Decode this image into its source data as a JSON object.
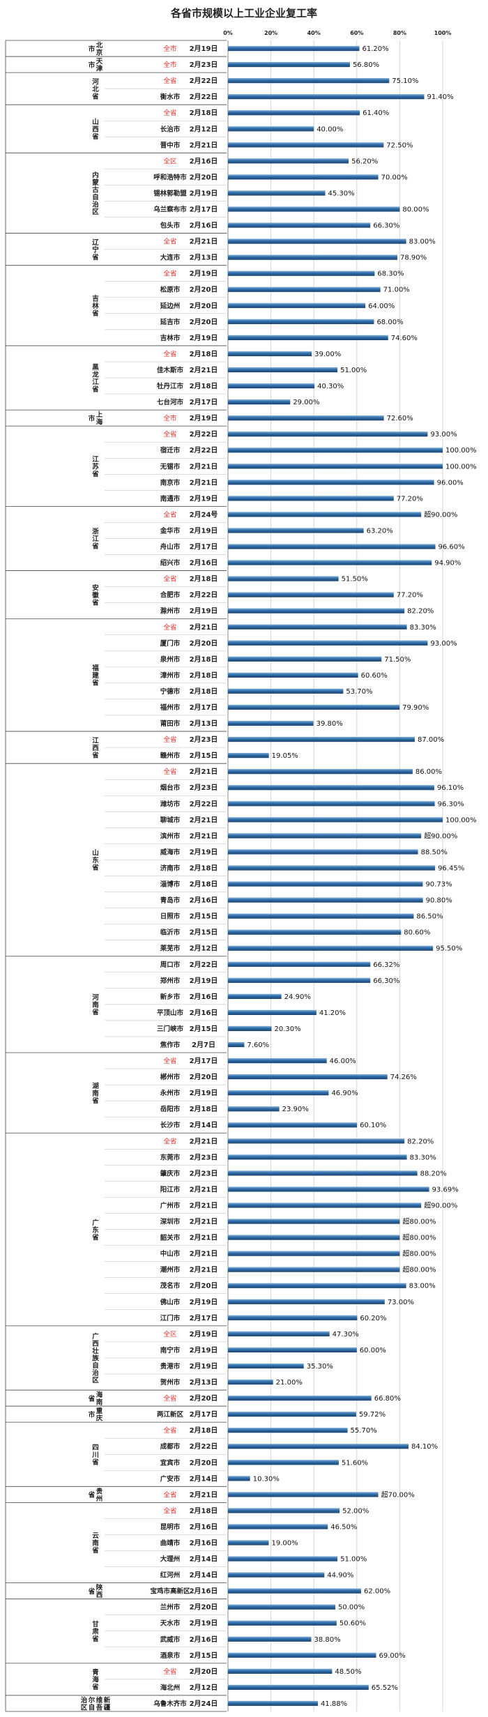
{
  "chart_data": {
    "type": "bar",
    "title": "各省市规模以上工业企业复工率",
    "xlabel": "",
    "ylabel": "",
    "xlim": [
      0,
      100
    ],
    "x_ticks": [
      "0%",
      "20%",
      "40%",
      "60%",
      "80%",
      "100%"
    ],
    "grid": true,
    "bar_color": "#2e6aa6",
    "accent_color": "#e8352c",
    "groups": [
      {
        "province": "北京市",
        "rows": [
          {
            "city": "全市",
            "date": "2月19日",
            "value": 61.2,
            "label": "61.20%"
          }
        ]
      },
      {
        "province": "天津市",
        "rows": [
          {
            "city": "全市",
            "date": "2月23日",
            "value": 56.8,
            "label": "56.80%"
          }
        ]
      },
      {
        "province": "河北省",
        "rows": [
          {
            "city": "全省",
            "date": "2月22日",
            "value": 75.1,
            "label": "75.10%"
          },
          {
            "city": "衡水市",
            "date": "2月22日",
            "value": 91.4,
            "label": "91.40%"
          }
        ]
      },
      {
        "province": "山西省",
        "rows": [
          {
            "city": "全省",
            "date": "2月18日",
            "value": 61.4,
            "label": "61.40%"
          },
          {
            "city": "长治市",
            "date": "2月12日",
            "value": 40.0,
            "label": "40.00%"
          },
          {
            "city": "晋中市",
            "date": "2月21日",
            "value": 72.5,
            "label": "72.50%"
          }
        ]
      },
      {
        "province": "内蒙古自治区",
        "rows": [
          {
            "city": "全区",
            "date": "2月16日",
            "value": 56.2,
            "label": "56.20%"
          },
          {
            "city": "呼和浩特市",
            "date": "2月20日",
            "value": 70.0,
            "label": "70.00%"
          },
          {
            "city": "锡林郭勒盟",
            "date": "2月19日",
            "value": 45.3,
            "label": "45.30%"
          },
          {
            "city": "乌兰察布市",
            "date": "2月17日",
            "value": 80.0,
            "label": "80.00%"
          },
          {
            "city": "包头市",
            "date": "2月16日",
            "value": 66.3,
            "label": "66.30%"
          }
        ]
      },
      {
        "province": "辽宁省",
        "rows": [
          {
            "city": "全省",
            "date": "2月21日",
            "value": 83.0,
            "label": "83.00%"
          },
          {
            "city": "大连市",
            "date": "2月13日",
            "value": 78.9,
            "label": "78.90%"
          }
        ]
      },
      {
        "province": "吉林省",
        "rows": [
          {
            "city": "全省",
            "date": "2月19日",
            "value": 68.3,
            "label": "68.30%"
          },
          {
            "city": "松原市",
            "date": "2月20日",
            "value": 71.0,
            "label": "71.00%"
          },
          {
            "city": "延边州",
            "date": "2月20日",
            "value": 64.0,
            "label": "64.00%"
          },
          {
            "city": "延吉市",
            "date": "2月20日",
            "value": 68.0,
            "label": "68.00%"
          },
          {
            "city": "吉林市",
            "date": "2月19日",
            "value": 74.6,
            "label": "74.60%"
          }
        ]
      },
      {
        "province": "黑龙江省",
        "rows": [
          {
            "city": "全省",
            "date": "2月18日",
            "value": 39.0,
            "label": "39.00%"
          },
          {
            "city": "佳木斯市",
            "date": "2月21日",
            "value": 51.0,
            "label": "51.00%"
          },
          {
            "city": "牡丹江市",
            "date": "2月18日",
            "value": 40.3,
            "label": "40.30%"
          },
          {
            "city": "七台河市",
            "date": "2月17日",
            "value": 29.0,
            "label": "29.00%"
          }
        ]
      },
      {
        "province": "上海市",
        "rows": [
          {
            "city": "全市",
            "date": "2月19日",
            "value": 72.6,
            "label": "72.60%"
          }
        ]
      },
      {
        "province": "江苏省",
        "rows": [
          {
            "city": "全省",
            "date": "2月22日",
            "value": 93.0,
            "label": "93.00%"
          },
          {
            "city": "宿迁市",
            "date": "2月22日",
            "value": 100.0,
            "label": "100.00%"
          },
          {
            "city": "无锡市",
            "date": "2月21日",
            "value": 100.0,
            "label": "100.00%"
          },
          {
            "city": "南京市",
            "date": "2月21日",
            "value": 96.0,
            "label": "96.00%"
          },
          {
            "city": "南通市",
            "date": "2月19日",
            "value": 77.2,
            "label": "77.20%"
          }
        ]
      },
      {
        "province": "浙江省",
        "rows": [
          {
            "city": "全省",
            "date": "2月24号",
            "value": 90.0,
            "label": "超90.00%"
          },
          {
            "city": "金华市",
            "date": "2月19日",
            "value": 63.2,
            "label": "63.20%"
          },
          {
            "city": "舟山市",
            "date": "2月17日",
            "value": 96.6,
            "label": "96.60%"
          },
          {
            "city": "绍兴市",
            "date": "2月16日",
            "value": 94.9,
            "label": "94.90%"
          }
        ]
      },
      {
        "province": "安徽省",
        "rows": [
          {
            "city": "全省",
            "date": "2月18日",
            "value": 51.5,
            "label": "51.50%"
          },
          {
            "city": "合肥市",
            "date": "2月22日",
            "value": 77.2,
            "label": "77.20%"
          },
          {
            "city": "滁州市",
            "date": "2月19日",
            "value": 82.2,
            "label": "82.20%"
          }
        ]
      },
      {
        "province": "福建省",
        "rows": [
          {
            "city": "全省",
            "date": "2月21日",
            "value": 83.3,
            "label": "83.30%"
          },
          {
            "city": "厦门市",
            "date": "2月20日",
            "value": 93.0,
            "label": "93.00%"
          },
          {
            "city": "泉州市",
            "date": "2月18日",
            "value": 71.5,
            "label": "71.50%"
          },
          {
            "city": "漳州市",
            "date": "2月18日",
            "value": 60.6,
            "label": "60.60%"
          },
          {
            "city": "宁德市",
            "date": "2月18日",
            "value": 53.7,
            "label": "53.70%"
          },
          {
            "city": "福州市",
            "date": "2月17日",
            "value": 79.9,
            "label": "79.90%"
          },
          {
            "city": "莆田市",
            "date": "2月13日",
            "value": 39.8,
            "label": "39.80%"
          }
        ]
      },
      {
        "province": "江西省",
        "rows": [
          {
            "city": "全省",
            "date": "2月23日",
            "value": 87.0,
            "label": "87.00%"
          },
          {
            "city": "赣州市",
            "date": "2月15日",
            "value": 19.05,
            "label": "19.05%"
          }
        ]
      },
      {
        "province": "山东省",
        "rows": [
          {
            "city": "全省",
            "date": "2月21日",
            "value": 86.0,
            "label": "86.00%"
          },
          {
            "city": "烟台市",
            "date": "2月23日",
            "value": 96.1,
            "label": "96.10%"
          },
          {
            "city": "潍坊市",
            "date": "2月22日",
            "value": 96.3,
            "label": "96.30%"
          },
          {
            "city": "聊城市",
            "date": "2月21日",
            "value": 100.0,
            "label": "100.00%"
          },
          {
            "city": "滨州市",
            "date": "2月21日",
            "value": 90.0,
            "label": "超90.00%"
          },
          {
            "city": "威海市",
            "date": "2月19日",
            "value": 88.5,
            "label": "88.50%"
          },
          {
            "city": "济南市",
            "date": "2月18日",
            "value": 96.45,
            "label": "96.45%"
          },
          {
            "city": "淄博市",
            "date": "2月18日",
            "value": 90.73,
            "label": "90.73%"
          },
          {
            "city": "青岛市",
            "date": "2月16日",
            "value": 90.8,
            "label": "90.80%"
          },
          {
            "city": "日照市",
            "date": "2月15日",
            "value": 86.5,
            "label": "86.50%"
          },
          {
            "city": "临沂市",
            "date": "2月15日",
            "value": 80.6,
            "label": "80.60%"
          },
          {
            "city": "莱芜市",
            "date": "2月12日",
            "value": 95.5,
            "label": "95.50%"
          }
        ]
      },
      {
        "province": "河南省",
        "rows": [
          {
            "city": "周口市",
            "date": "2月22日",
            "value": 66.32,
            "label": "66.32%"
          },
          {
            "city": "郑州市",
            "date": "2月19日",
            "value": 66.3,
            "label": "66.30%"
          },
          {
            "city": "新乡市",
            "date": "2月16日",
            "value": 24.9,
            "label": "24.90%"
          },
          {
            "city": "平顶山市",
            "date": "2月16日",
            "value": 41.2,
            "label": "41.20%"
          },
          {
            "city": "三门峡市",
            "date": "2月15日",
            "value": 20.3,
            "label": "20.30%"
          },
          {
            "city": "焦作市",
            "date": "2月7日",
            "value": 7.6,
            "label": "7.60%"
          }
        ]
      },
      {
        "province": "湖南省",
        "rows": [
          {
            "city": "全省",
            "date": "2月17日",
            "value": 46.0,
            "label": "46.00%"
          },
          {
            "city": "郴州市",
            "date": "2月20日",
            "value": 74.26,
            "label": "74.26%"
          },
          {
            "city": "永州市",
            "date": "2月19日",
            "value": 46.9,
            "label": "46.90%"
          },
          {
            "city": "岳阳市",
            "date": "2月18日",
            "value": 23.9,
            "label": "23.90%"
          },
          {
            "city": "长沙市",
            "date": "2月14日",
            "value": 60.1,
            "label": "60.10%"
          }
        ]
      },
      {
        "province": "广东省",
        "rows": [
          {
            "city": "全省",
            "date": "2月21日",
            "value": 82.2,
            "label": "82.20%"
          },
          {
            "city": "东莞市",
            "date": "2月23日",
            "value": 83.3,
            "label": "83.30%"
          },
          {
            "city": "肇庆市",
            "date": "2月23日",
            "value": 88.2,
            "label": "88.20%"
          },
          {
            "city": "阳江市",
            "date": "2月21日",
            "value": 93.69,
            "label": "93.69%"
          },
          {
            "city": "广州市",
            "date": "2月21日",
            "value": 90.0,
            "label": "超90.00%"
          },
          {
            "city": "深圳市",
            "date": "2月21日",
            "value": 80.0,
            "label": "超80.00%"
          },
          {
            "city": "韶关市",
            "date": "2月21日",
            "value": 80.0,
            "label": "超80.00%"
          },
          {
            "city": "中山市",
            "date": "2月21日",
            "value": 80.0,
            "label": "超80.00%"
          },
          {
            "city": "潮州市",
            "date": "2月21日",
            "value": 80.0,
            "label": "超80.00%"
          },
          {
            "city": "茂名市",
            "date": "2月20日",
            "value": 83.0,
            "label": "83.00%"
          },
          {
            "city": "佛山市",
            "date": "2月19日",
            "value": 73.0,
            "label": "73.00%"
          },
          {
            "city": "江门市",
            "date": "2月17日",
            "value": 60.2,
            "label": "60.20%"
          }
        ]
      },
      {
        "province": "广西壮族自治区",
        "rows": [
          {
            "city": "全区",
            "date": "2月19日",
            "value": 47.3,
            "label": "47.30%"
          },
          {
            "city": "南宁市",
            "date": "2月19日",
            "value": 60.0,
            "label": "60.00%"
          },
          {
            "city": "贵港市",
            "date": "2月19日",
            "value": 35.3,
            "label": "35.30%"
          },
          {
            "city": "贺州市",
            "date": "2月13日",
            "value": 21.0,
            "label": "21.00%"
          }
        ]
      },
      {
        "province": "海南省",
        "rows": [
          {
            "city": "全省",
            "date": "2月20日",
            "value": 66.8,
            "label": "66.80%"
          }
        ]
      },
      {
        "province": "重庆市",
        "rows": [
          {
            "city": "两江新区",
            "date": "2月17日",
            "value": 59.72,
            "label": "59.72%"
          }
        ]
      },
      {
        "province": "四川省",
        "rows": [
          {
            "city": "全省",
            "date": "2月18日",
            "value": 55.7,
            "label": "55.70%"
          },
          {
            "city": "成都市",
            "date": "2月22日",
            "value": 84.1,
            "label": "84.10%"
          },
          {
            "city": "宜宾市",
            "date": "2月20日",
            "value": 51.6,
            "label": "51.60%"
          },
          {
            "city": "广安市",
            "date": "2月14日",
            "value": 10.3,
            "label": "10.30%"
          }
        ]
      },
      {
        "province": "贵州省",
        "rows": [
          {
            "city": "全省",
            "date": "2月21日",
            "value": 70.0,
            "label": "超70.00%"
          }
        ]
      },
      {
        "province": "云南省",
        "rows": [
          {
            "city": "全省",
            "date": "2月18日",
            "value": 52.0,
            "label": "52.00%"
          },
          {
            "city": "昆明市",
            "date": "2月16日",
            "value": 46.5,
            "label": "46.50%"
          },
          {
            "city": "曲靖市",
            "date": "2月16日",
            "value": 19.0,
            "label": "19.00%"
          },
          {
            "city": "大理州",
            "date": "2月14日",
            "value": 51.0,
            "label": "51.00%"
          },
          {
            "city": "红河州",
            "date": "2月14日",
            "value": 44.9,
            "label": "44.90%"
          }
        ]
      },
      {
        "province": "陕西省",
        "rows": [
          {
            "city": "宝鸡市高新区",
            "date": "2月16日",
            "value": 62.0,
            "label": "62.00%"
          }
        ]
      },
      {
        "province": "甘肃省",
        "rows": [
          {
            "city": "兰州市",
            "date": "2月20日",
            "value": 50.0,
            "label": "50.00%"
          },
          {
            "city": "天水市",
            "date": "2月19日",
            "value": 50.6,
            "label": "50.60%"
          },
          {
            "city": "武威市",
            "date": "2月16日",
            "value": 38.8,
            "label": "38.80%"
          },
          {
            "city": "酒泉市",
            "date": "2月15日",
            "value": 69.0,
            "label": "69.00%"
          }
        ]
      },
      {
        "province": "青海省",
        "rows": [
          {
            "city": "全省",
            "date": "2月20日",
            "value": 48.5,
            "label": "48.50%"
          },
          {
            "city": "海北州",
            "date": "2月12日",
            "value": 65.52,
            "label": "65.52%"
          }
        ]
      },
      {
        "province": "新疆维吾尔自治区",
        "rows": [
          {
            "city": "乌鲁木齐市",
            "date": "2月24日",
            "value": 41.88,
            "label": "41.88%"
          }
        ]
      }
    ]
  }
}
